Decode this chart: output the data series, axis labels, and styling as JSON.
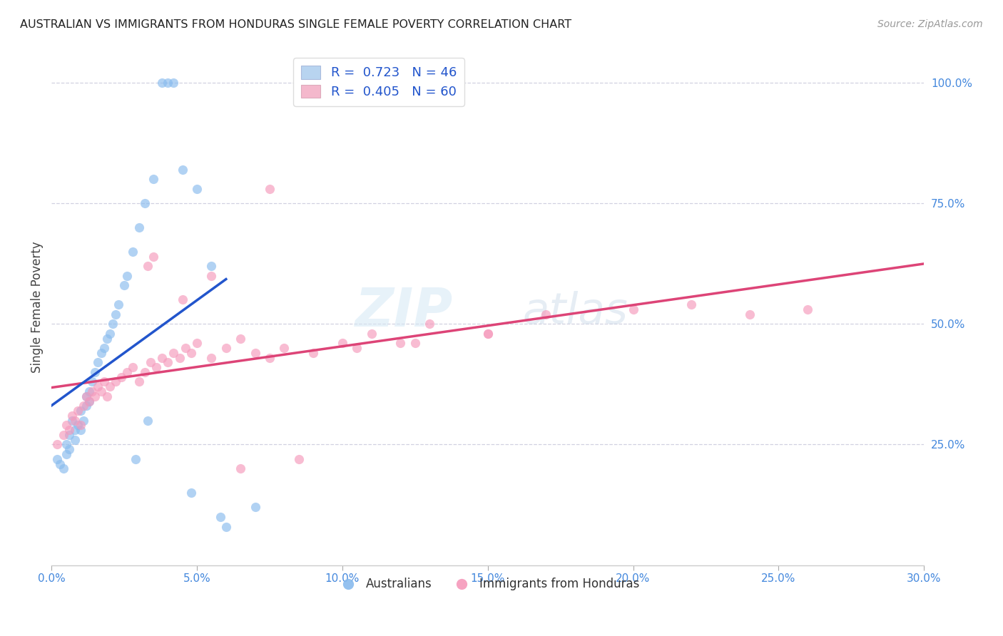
{
  "title": "AUSTRALIAN VS IMMIGRANTS FROM HONDURAS SINGLE FEMALE POVERTY CORRELATION CHART",
  "source": "Source: ZipAtlas.com",
  "xlabel_vals": [
    0.0,
    5.0,
    10.0,
    15.0,
    20.0,
    25.0,
    30.0
  ],
  "ylabel": "Single Female Poverty",
  "ylabel_right_vals": [
    100.0,
    75.0,
    50.0,
    25.0
  ],
  "xmin": 0.0,
  "xmax": 30.0,
  "ymin": 0.0,
  "ymax": 107.0,
  "legend_blue_label": "R =  0.723   N = 46",
  "legend_pink_label": "R =  0.405   N = 60",
  "legend_blue_color": "#b8d4f0",
  "legend_pink_color": "#f4b8cc",
  "blue_line_color": "#2255cc",
  "pink_line_color": "#dd4477",
  "dot_blue_color": "#88bbee",
  "dot_pink_color": "#f599bb",
  "dot_alpha": 0.65,
  "dot_size": 90,
  "title_color": "#222222",
  "source_color": "#999999",
  "axis_label_color": "#4488dd",
  "grid_color": "#ccccdd",
  "australians_x": [
    0.2,
    0.3,
    0.4,
    0.5,
    0.5,
    0.6,
    0.6,
    0.7,
    0.8,
    0.8,
    0.9,
    1.0,
    1.0,
    1.1,
    1.2,
    1.2,
    1.3,
    1.3,
    1.4,
    1.5,
    1.6,
    1.7,
    1.8,
    1.9,
    2.0,
    2.1,
    2.2,
    2.3,
    2.5,
    2.6,
    2.8,
    3.0,
    3.2,
    3.5,
    3.8,
    4.0,
    4.2,
    4.5,
    5.0,
    5.5,
    6.0,
    7.0,
    4.8,
    5.8,
    3.3,
    2.9
  ],
  "australians_y": [
    22.0,
    21.0,
    20.0,
    25.0,
    23.0,
    27.0,
    24.0,
    30.0,
    28.0,
    26.0,
    29.0,
    32.0,
    28.0,
    30.0,
    33.0,
    35.0,
    34.0,
    36.0,
    38.0,
    40.0,
    42.0,
    44.0,
    45.0,
    47.0,
    48.0,
    50.0,
    52.0,
    54.0,
    58.0,
    60.0,
    65.0,
    70.0,
    75.0,
    80.0,
    100.0,
    100.0,
    100.0,
    82.0,
    78.0,
    62.0,
    8.0,
    12.0,
    15.0,
    10.0,
    30.0,
    22.0
  ],
  "hondurans_x": [
    0.2,
    0.4,
    0.5,
    0.6,
    0.7,
    0.8,
    0.9,
    1.0,
    1.1,
    1.2,
    1.3,
    1.4,
    1.5,
    1.6,
    1.7,
    1.8,
    1.9,
    2.0,
    2.2,
    2.4,
    2.6,
    2.8,
    3.0,
    3.2,
    3.4,
    3.6,
    3.8,
    4.0,
    4.2,
    4.4,
    4.6,
    4.8,
    5.0,
    5.5,
    6.0,
    6.5,
    7.0,
    7.5,
    8.0,
    9.0,
    10.0,
    11.0,
    12.0,
    13.0,
    15.0,
    17.0,
    20.0,
    22.0,
    24.0,
    26.0,
    3.3,
    3.5,
    4.5,
    5.5,
    7.5,
    10.5,
    12.5,
    15.0,
    8.5,
    6.5
  ],
  "hondurans_y": [
    25.0,
    27.0,
    29.0,
    28.0,
    31.0,
    30.0,
    32.0,
    29.0,
    33.0,
    35.0,
    34.0,
    36.0,
    35.0,
    37.0,
    36.0,
    38.0,
    35.0,
    37.0,
    38.0,
    39.0,
    40.0,
    41.0,
    38.0,
    40.0,
    42.0,
    41.0,
    43.0,
    42.0,
    44.0,
    43.0,
    45.0,
    44.0,
    46.0,
    43.0,
    45.0,
    47.0,
    44.0,
    43.0,
    45.0,
    44.0,
    46.0,
    48.0,
    46.0,
    50.0,
    48.0,
    52.0,
    53.0,
    54.0,
    52.0,
    53.0,
    62.0,
    64.0,
    55.0,
    60.0,
    78.0,
    45.0,
    46.0,
    48.0,
    22.0,
    20.0
  ],
  "blue_line_x_start": 0.0,
  "blue_line_x_end": 6.0,
  "pink_line_x_start": 0.0,
  "pink_line_x_end": 30.0,
  "dashed_x_start": 0.0,
  "dashed_x_end": 5.5
}
